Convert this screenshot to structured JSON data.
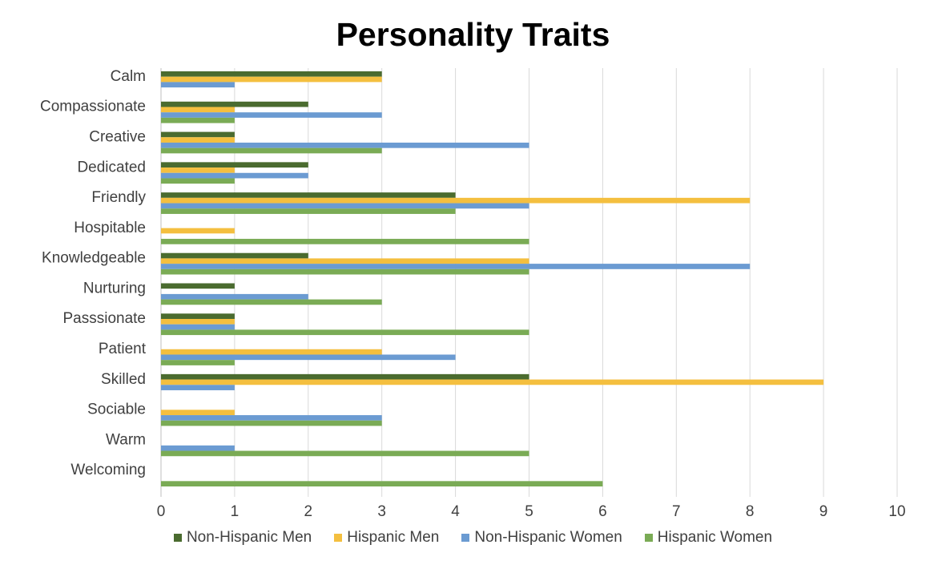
{
  "chart_data": {
    "type": "bar",
    "orientation": "horizontal",
    "title": "Personality Traits",
    "categories": [
      "Calm",
      "Compassionate",
      "Creative",
      "Dedicated",
      "Friendly",
      "Hospitable",
      "Knowledgeable",
      "Nurturing",
      "Passsionate",
      "Patient",
      "Skilled",
      "Sociable",
      "Warm",
      "Welcoming"
    ],
    "series": [
      {
        "name": "Non-Hispanic Men",
        "color": "#4a6b2f",
        "values": [
          3,
          2,
          1,
          2,
          4,
          0,
          2,
          1,
          1,
          0,
          5,
          0,
          0,
          0
        ]
      },
      {
        "name": "Hispanic Men",
        "color": "#f4bf3f",
        "values": [
          3,
          1,
          1,
          1,
          8,
          1,
          5,
          0,
          1,
          3,
          9,
          1,
          0,
          0
        ]
      },
      {
        "name": "Non-Hispanic Women",
        "color": "#6b9bd2",
        "values": [
          1,
          3,
          5,
          2,
          5,
          0,
          8,
          2,
          1,
          4,
          1,
          3,
          1,
          0
        ]
      },
      {
        "name": "Hispanic Women",
        "color": "#7aab55",
        "values": [
          0,
          1,
          3,
          1,
          4,
          5,
          5,
          3,
          5,
          1,
          0,
          3,
          5,
          6
        ]
      }
    ],
    "xlim": [
      0,
      10
    ],
    "xticks": [
      "0",
      "1",
      "2",
      "3",
      "4",
      "5",
      "6",
      "7",
      "8",
      "9",
      "10"
    ],
    "grid": true,
    "legend_position": "bottom"
  }
}
